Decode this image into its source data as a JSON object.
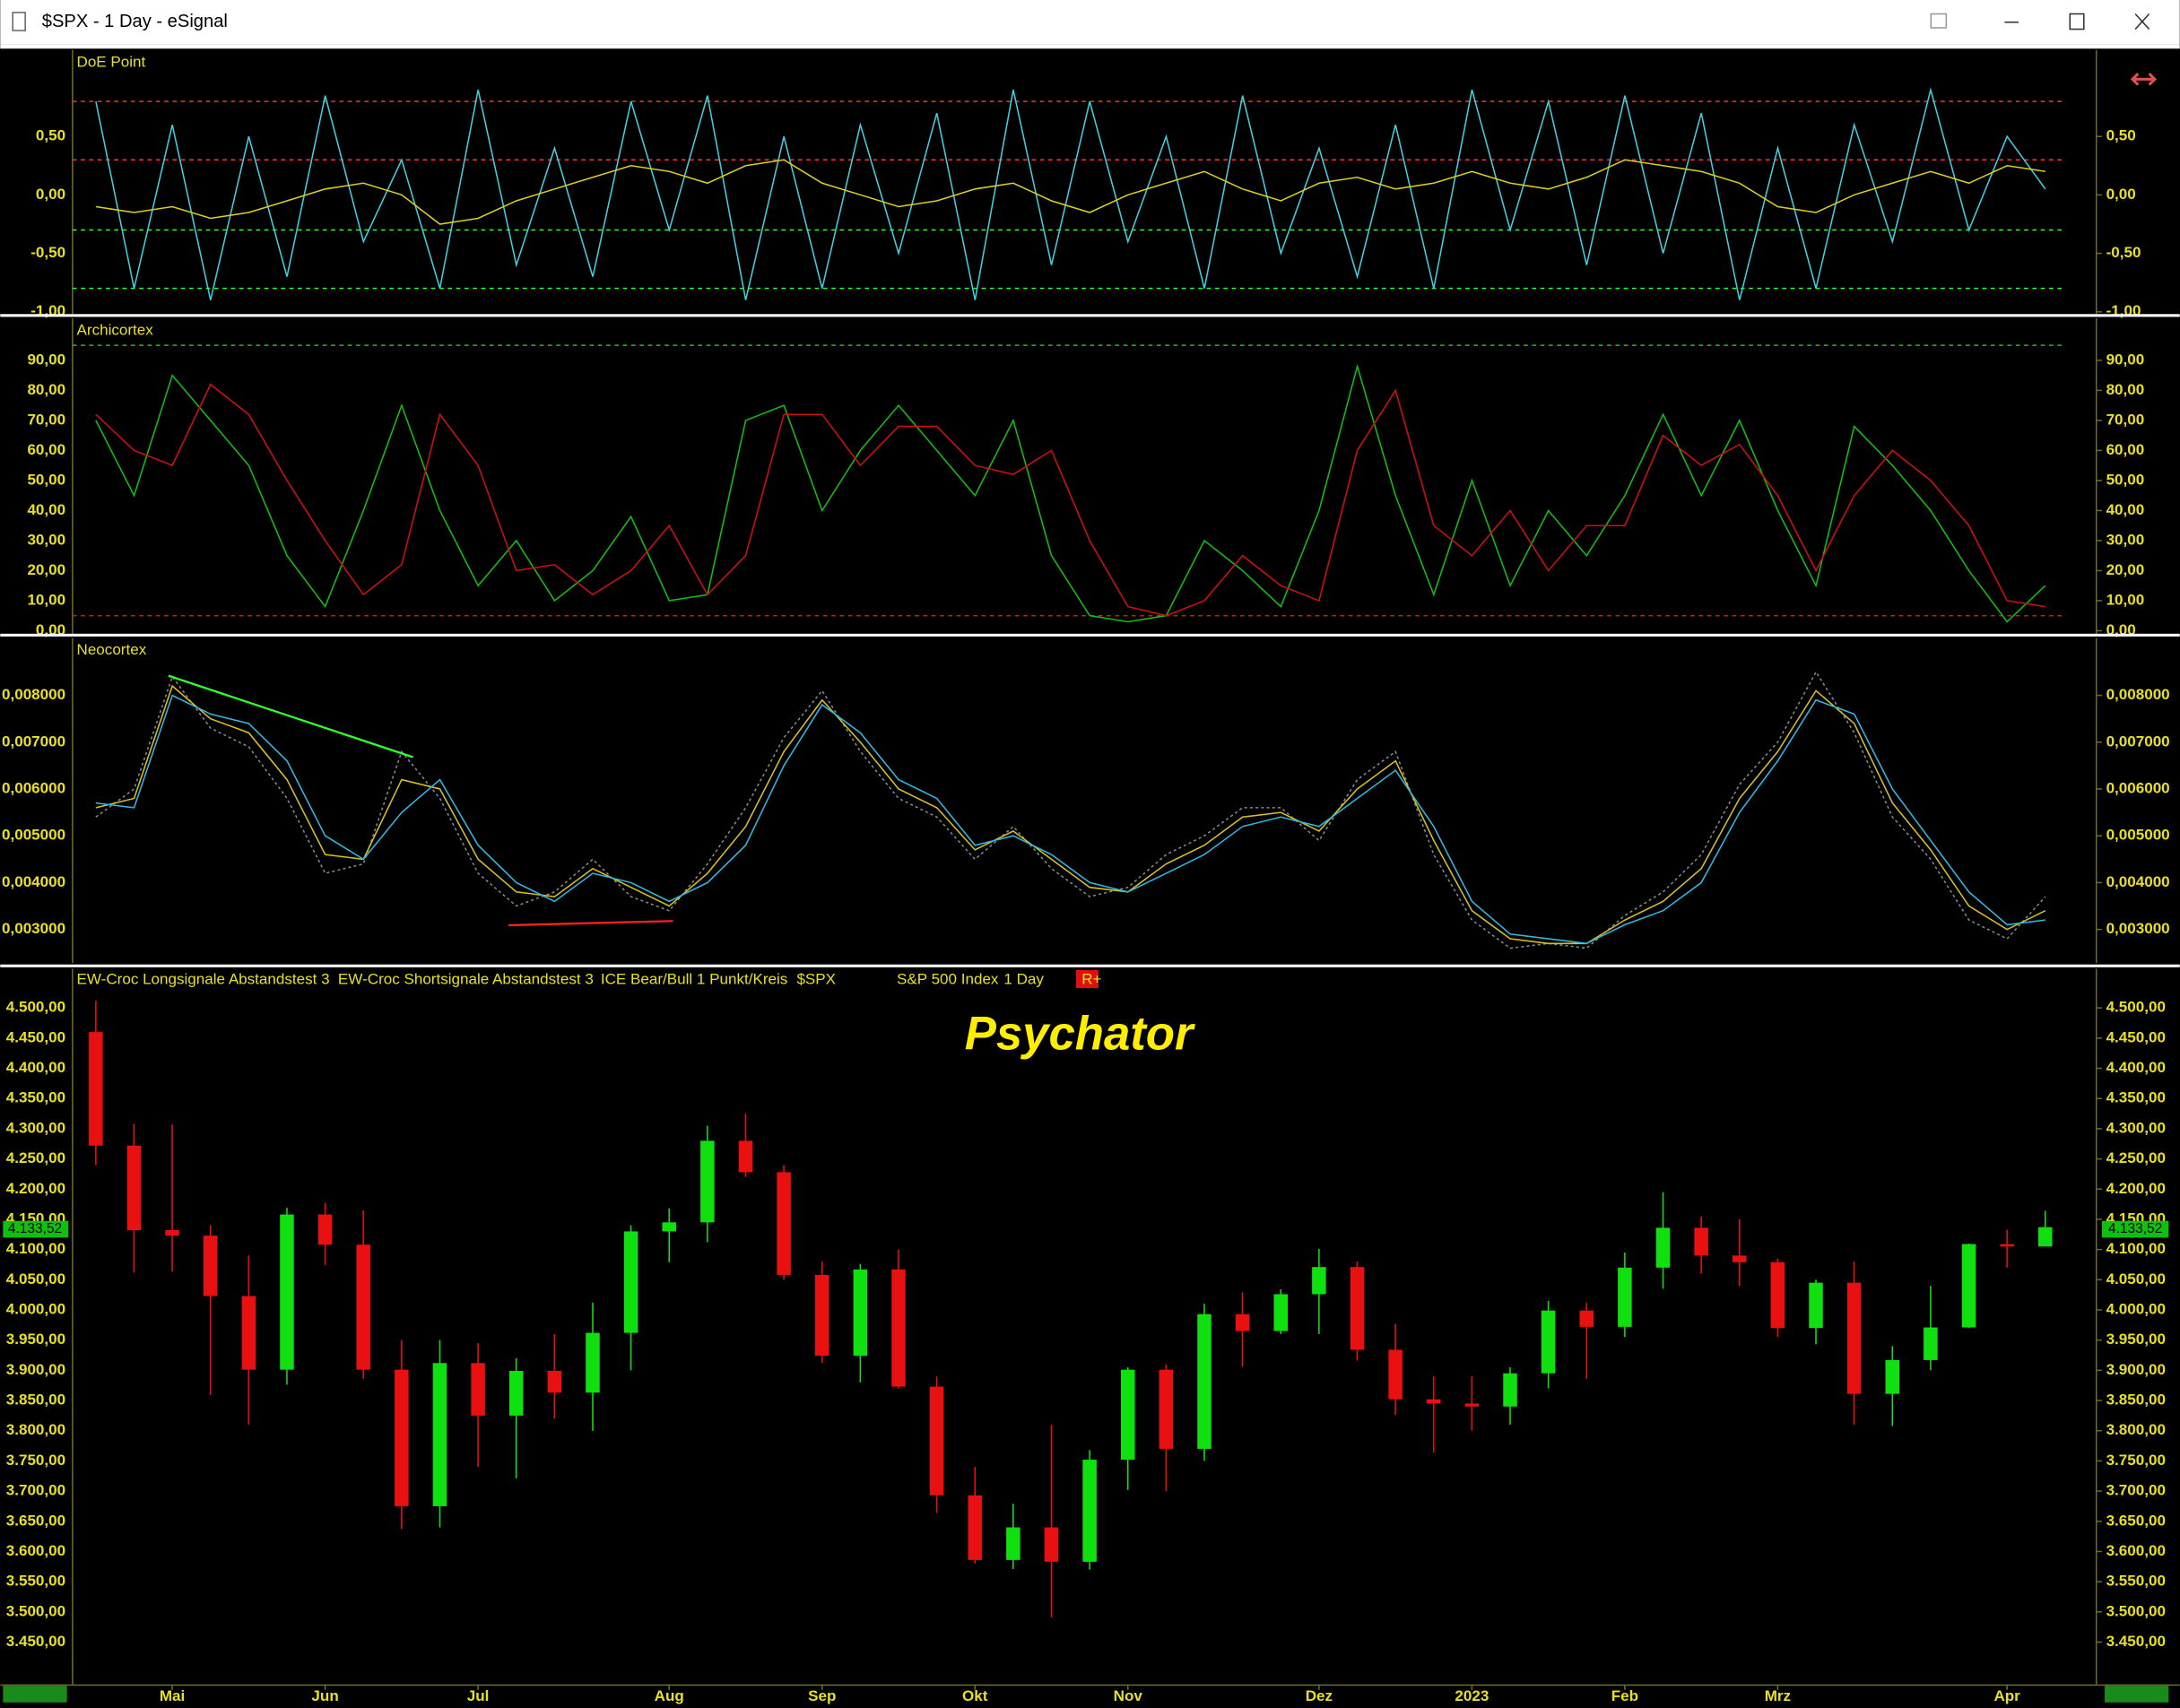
{
  "window": {
    "title": "$SPX - 1 Day - eSignal"
  },
  "chart_data": [
    {
      "type": "line",
      "title": "DoE Point",
      "ylim": [
        -1.02,
        1.24
      ],
      "yticks": [
        {
          "value": 0.5,
          "label": "0,50"
        },
        {
          "value": 0,
          "label": "0,00"
        },
        {
          "value": -0.5,
          "label": "-0,50"
        },
        {
          "value": -1,
          "label": "-1,00"
        }
      ],
      "levels": [
        {
          "value": 0.8,
          "color": "#ff3030"
        },
        {
          "value": 0.3,
          "color": "#ff3030"
        },
        {
          "value": -0.3,
          "color": "#30ff30"
        },
        {
          "value": -0.8,
          "color": "#30ff30"
        }
      ],
      "series": [
        {
          "color": "#3fd0e0",
          "values": [
            0.8,
            -0.8,
            0.6,
            -0.9,
            0.5,
            -0.7,
            0.85,
            -0.4,
            0.3,
            -0.8,
            0.9,
            -0.6,
            0.4,
            -0.7,
            0.8,
            -0.3,
            0.85,
            -0.9,
            0.5,
            -0.8,
            0.6,
            -0.5,
            0.7,
            -0.9,
            0.9,
            -0.6,
            0.8,
            -0.4,
            0.5,
            -0.8,
            0.85,
            -0.5,
            0.4,
            -0.7,
            0.6,
            -0.8,
            0.9,
            -0.3,
            0.8,
            -0.6,
            0.85,
            -0.5,
            0.7,
            -0.9,
            0.4,
            -0.8,
            0.6,
            -0.4,
            0.9,
            -0.3,
            0.5,
            0.05
          ]
        },
        {
          "color": "#d8d020",
          "values": [
            -0.1,
            -0.15,
            -0.1,
            -0.2,
            -0.15,
            -0.05,
            0.05,
            0.1,
            0.0,
            -0.25,
            -0.2,
            -0.05,
            0.05,
            0.15,
            0.25,
            0.2,
            0.1,
            0.25,
            0.3,
            0.1,
            0.0,
            -0.1,
            -0.05,
            0.05,
            0.1,
            -0.05,
            -0.15,
            0.0,
            0.1,
            0.2,
            0.05,
            -0.05,
            0.1,
            0.15,
            0.05,
            0.1,
            0.2,
            0.1,
            0.05,
            0.15,
            0.3,
            0.25,
            0.2,
            0.1,
            -0.1,
            -0.15,
            0.0,
            0.1,
            0.2,
            0.1,
            0.25,
            0.2
          ]
        }
      ]
    },
    {
      "type": "line",
      "title": "Archicortex",
      "ylim": [
        -1,
        104
      ],
      "yticks": [
        {
          "value": 90,
          "label": "90,00"
        },
        {
          "value": 80,
          "label": "80,00"
        },
        {
          "value": 70,
          "label": "70,00"
        },
        {
          "value": 60,
          "label": "60,00"
        },
        {
          "value": 50,
          "label": "50,00"
        },
        {
          "value": 40,
          "label": "40,00"
        },
        {
          "value": 30,
          "label": "30,00"
        },
        {
          "value": 20,
          "label": "20,00"
        },
        {
          "value": 10,
          "label": "10,00"
        },
        {
          "value": 0,
          "label": "0,00"
        }
      ],
      "levels": [
        {
          "value": 95,
          "color": "#20c020"
        },
        {
          "value": 5,
          "color": "#c02020"
        }
      ],
      "series": [
        {
          "color": "#10c010",
          "values": [
            70,
            45,
            85,
            70,
            55,
            25,
            8,
            40,
            75,
            40,
            15,
            30,
            10,
            20,
            38,
            10,
            12,
            70,
            75,
            40,
            60,
            75,
            60,
            45,
            70,
            25,
            5,
            3,
            5,
            30,
            20,
            8,
            40,
            88,
            45,
            12,
            50,
            15,
            40,
            25,
            45,
            72,
            45,
            70,
            40,
            15,
            68,
            55,
            40,
            20,
            3,
            15
          ]
        },
        {
          "color": "#d01010",
          "values": [
            72,
            60,
            55,
            82,
            72,
            50,
            30,
            12,
            22,
            72,
            55,
            20,
            22,
            12,
            20,
            35,
            12,
            25,
            72,
            72,
            55,
            68,
            68,
            55,
            52,
            60,
            30,
            8,
            5,
            10,
            25,
            15,
            10,
            60,
            80,
            35,
            25,
            40,
            20,
            35,
            35,
            65,
            55,
            62,
            45,
            20,
            45,
            60,
            50,
            35,
            10,
            8
          ]
        }
      ]
    },
    {
      "type": "line",
      "title": "Neocortex",
      "ylim": [
        0.002281,
        0.009228
      ],
      "yticks": [
        {
          "value": 0.008,
          "label": "0,008000"
        },
        {
          "value": 0.007,
          "label": "0,007000"
        },
        {
          "value": 0.006,
          "label": "0,006000"
        },
        {
          "value": 0.005,
          "label": "0,005000"
        },
        {
          "value": 0.004,
          "label": "0,004000"
        },
        {
          "value": 0.003,
          "label": "0,003000"
        }
      ],
      "series": [
        {
          "color": "#888888",
          "style": "dotted",
          "values": [
            0.0054,
            0.006,
            0.0084,
            0.0073,
            0.0069,
            0.0058,
            0.0042,
            0.0044,
            0.0068,
            0.0058,
            0.0042,
            0.0035,
            0.0038,
            0.0045,
            0.0037,
            0.0034,
            0.0044,
            0.0056,
            0.0071,
            0.0081,
            0.0068,
            0.0058,
            0.0054,
            0.0045,
            0.0052,
            0.0043,
            0.0037,
            0.0039,
            0.0046,
            0.005,
            0.0056,
            0.0056,
            0.0049,
            0.0062,
            0.0068,
            0.0046,
            0.0032,
            0.0026,
            0.0027,
            0.0026,
            0.0033,
            0.0038,
            0.0046,
            0.0061,
            0.007,
            0.0085,
            0.0072,
            0.0054,
            0.0045,
            0.0032,
            0.0028,
            0.0037
          ]
        },
        {
          "color": "#d8c020",
          "values": [
            0.0056,
            0.0058,
            0.0082,
            0.0075,
            0.0072,
            0.0062,
            0.0046,
            0.0045,
            0.0062,
            0.006,
            0.0045,
            0.0038,
            0.0037,
            0.0043,
            0.0039,
            0.0035,
            0.0042,
            0.0052,
            0.0068,
            0.0079,
            0.007,
            0.006,
            0.0056,
            0.0047,
            0.0051,
            0.0045,
            0.0039,
            0.0038,
            0.0044,
            0.0048,
            0.0054,
            0.0055,
            0.0051,
            0.006,
            0.0066,
            0.0049,
            0.0034,
            0.0028,
            0.0027,
            0.0027,
            0.0032,
            0.0036,
            0.0043,
            0.0058,
            0.0068,
            0.0081,
            0.0074,
            0.0057,
            0.0047,
            0.0035,
            0.003,
            0.0034
          ]
        },
        {
          "color": "#30b8e0",
          "values": [
            0.0057,
            0.0056,
            0.008,
            0.0076,
            0.0074,
            0.0066,
            0.005,
            0.0045,
            0.0055,
            0.0062,
            0.0048,
            0.004,
            0.0036,
            0.0042,
            0.004,
            0.0036,
            0.004,
            0.0048,
            0.0065,
            0.0078,
            0.0072,
            0.0062,
            0.0058,
            0.0048,
            0.005,
            0.0046,
            0.004,
            0.0038,
            0.0042,
            0.0046,
            0.0052,
            0.0054,
            0.0052,
            0.0058,
            0.0064,
            0.0052,
            0.0036,
            0.0029,
            0.0028,
            0.0027,
            0.0031,
            0.0034,
            0.004,
            0.0055,
            0.0066,
            0.0079,
            0.0076,
            0.006,
            0.0049,
            0.0038,
            0.0031,
            0.0032
          ]
        }
      ],
      "trendlines": [
        {
          "color": "#30ff30",
          "x": [
            2.4,
            8.8
          ],
          "values": [
            0.00842,
            0.00668
          ]
        },
        {
          "color": "#ff2020",
          "x": [
            11.3,
            15.6
          ],
          "values": [
            0.00309,
            0.00318
          ]
        }
      ]
    },
    {
      "type": "candlestick",
      "annotation": "Psychator",
      "legend": [
        "EW-Croc Longsignale Abstandstest 3",
        "EW-Croc Shortsignale Abstandstest 3",
        "ICE Bear/Bull 1 Punkt/Kreis",
        "$SPX",
        "S&P 500 Index",
        "1 Day",
        "R+"
      ],
      "categories": [
        null,
        null,
        "Mai",
        null,
        null,
        null,
        "Jun",
        null,
        null,
        null,
        "Jul",
        null,
        null,
        null,
        null,
        "Aug",
        null,
        null,
        null,
        "Sep",
        null,
        null,
        null,
        "Okt",
        null,
        null,
        null,
        "Nov",
        null,
        null,
        null,
        null,
        "Dez",
        null,
        null,
        null,
        "2023",
        null,
        null,
        null,
        "Feb",
        null,
        null,
        null,
        "Mrz",
        null,
        null,
        null,
        null,
        null,
        "Apr",
        null
      ],
      "ylim": [
        3380,
        4565
      ],
      "yticks": [
        {
          "value": 4500,
          "label": "4.500,00"
        },
        {
          "value": 4450,
          "label": "4.450,00"
        },
        {
          "value": 4400,
          "label": "4.400,00"
        },
        {
          "value": 4350,
          "label": "4.350,00"
        },
        {
          "value": 4300,
          "label": "4.300,00"
        },
        {
          "value": 4250,
          "label": "4.250,00"
        },
        {
          "value": 4200,
          "label": "4.200,00"
        },
        {
          "value": 4150,
          "label": "4.150,00"
        },
        {
          "value": 4100,
          "label": "4.100,00"
        },
        {
          "value": 4050,
          "label": "4.050,00"
        },
        {
          "value": 4000,
          "label": "4.000,00"
        },
        {
          "value": 3950,
          "label": "3.950,00"
        },
        {
          "value": 3900,
          "label": "3.900,00"
        },
        {
          "value": 3850,
          "label": "3.850,00"
        },
        {
          "value": 3800,
          "label": "3.800,00"
        },
        {
          "value": 3750,
          "label": "3.750,00"
        },
        {
          "value": 3700,
          "label": "3.700,00"
        },
        {
          "value": 3650,
          "label": "3.650,00"
        },
        {
          "value": 3600,
          "label": "3.600,00"
        },
        {
          "value": 3550,
          "label": "3.550,00"
        },
        {
          "value": 3500,
          "label": "3.500,00"
        },
        {
          "value": 3450,
          "label": "3.450,00"
        }
      ],
      "last_price": {
        "value": 4133.52,
        "label": "4.133,52"
      },
      "up_color": "#10e010",
      "down_color": "#e81010",
      "open": [
        4460,
        4272,
        4132,
        4123,
        4023,
        3901,
        4158,
        4108,
        3901,
        3675,
        3912,
        3825,
        3899,
        3863,
        3962,
        4130,
        4145,
        4280,
        4228,
        4058,
        3924,
        4067,
        3873,
        3693,
        3586,
        3640,
        3583,
        3752,
        3901,
        3770,
        3993,
        3965,
        4026,
        4071,
        3934,
        3852,
        3845,
        3840,
        3895,
        3999,
        3972,
        4070,
        4136,
        4090,
        4079,
        3970,
        4045,
        3861,
        3917,
        3971,
        4109,
        4105
      ],
      "high": [
        4512,
        4308,
        4307,
        4140,
        4090,
        4169,
        4177,
        4165,
        3950,
        3950,
        3945,
        3920,
        3960,
        4012,
        4140,
        4168,
        4305,
        4325,
        4240,
        4080,
        4076,
        4100,
        3890,
        3740,
        3679,
        3810,
        3768,
        3905,
        3910,
        4010,
        4029,
        4034,
        4101,
        4080,
        3977,
        3890,
        3890,
        3905,
        4015,
        4012,
        4095,
        4195,
        4155,
        4150,
        4085,
        4050,
        4080,
        3940,
        4040,
        4110,
        4133,
        4164
      ],
      "low": [
        4240,
        4062,
        4063,
        3859,
        3810,
        3876,
        4074,
        3886,
        3637,
        3640,
        3740,
        3721,
        3820,
        3800,
        3900,
        4079,
        4112,
        4220,
        4050,
        3912,
        3880,
        3870,
        3664,
        3580,
        3571,
        3491,
        3570,
        3702,
        3700,
        3750,
        3906,
        3960,
        3960,
        3916,
        3826,
        3764,
        3800,
        3810,
        3870,
        3886,
        3955,
        4035,
        4060,
        4040,
        3955,
        3943,
        3810,
        3808,
        3900,
        3970,
        4070,
        4110
      ],
      "close": [
        4272,
        4132,
        4123,
        4023,
        3901,
        4158,
        4108,
        3901,
        3675,
        3912,
        3825,
        3899,
        3863,
        3962,
        4130,
        4145,
        4280,
        4228,
        4058,
        3924,
        4067,
        3873,
        3693,
        3586,
        3640,
        3583,
        3752,
        3901,
        3770,
        3993,
        3965,
        4026,
        4071,
        3934,
        3852,
        3845,
        3840,
        3895,
        3999,
        3972,
        4070,
        4136,
        4090,
        4079,
        3970,
        4045,
        3861,
        3917,
        3971,
        4109,
        4105,
        4137
      ]
    }
  ]
}
